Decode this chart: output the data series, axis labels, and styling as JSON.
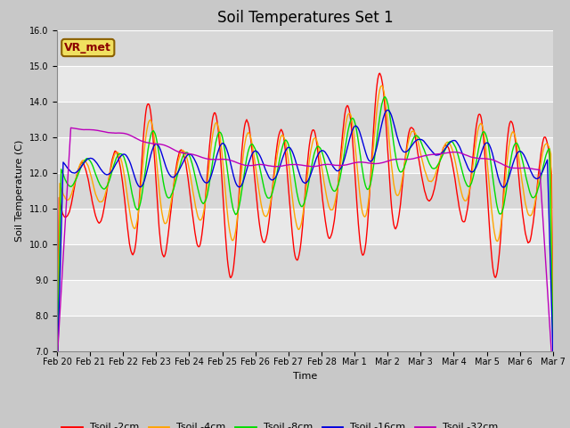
{
  "title": "Soil Temperatures Set 1",
  "xlabel": "Time",
  "ylabel": "Soil Temperature (C)",
  "ylim": [
    7.0,
    16.0
  ],
  "yticks": [
    7.0,
    8.0,
    9.0,
    10.0,
    11.0,
    12.0,
    13.0,
    14.0,
    15.0,
    16.0
  ],
  "plot_bg_color": "#e8e8e8",
  "fig_bg_color": "#c8c8c8",
  "annotation_text": "VR_met",
  "annotation_color": "#8b0000",
  "annotation_bg": "#f0e060",
  "annotation_edge": "#8b6000",
  "series_colors": {
    "Tsoil -2cm": "#ff0000",
    "Tsoil -4cm": "#ffa500",
    "Tsoil -8cm": "#00dd00",
    "Tsoil -16cm": "#0000dd",
    "Tsoil -32cm": "#bb00bb"
  },
  "xtick_labels": [
    "Feb 20",
    "Feb 21",
    "Feb 22",
    "Feb 23",
    "Feb 24",
    "Feb 25",
    "Feb 26",
    "Feb 27",
    "Feb 28",
    "Mar 1",
    "Mar 2",
    "Mar 3",
    "Mar 4",
    "Mar 5",
    "Mar 6",
    "Mar 7"
  ],
  "title_fontsize": 12,
  "axis_fontsize": 8,
  "tick_fontsize": 7,
  "legend_fontsize": 8,
  "linewidth": 1.0
}
